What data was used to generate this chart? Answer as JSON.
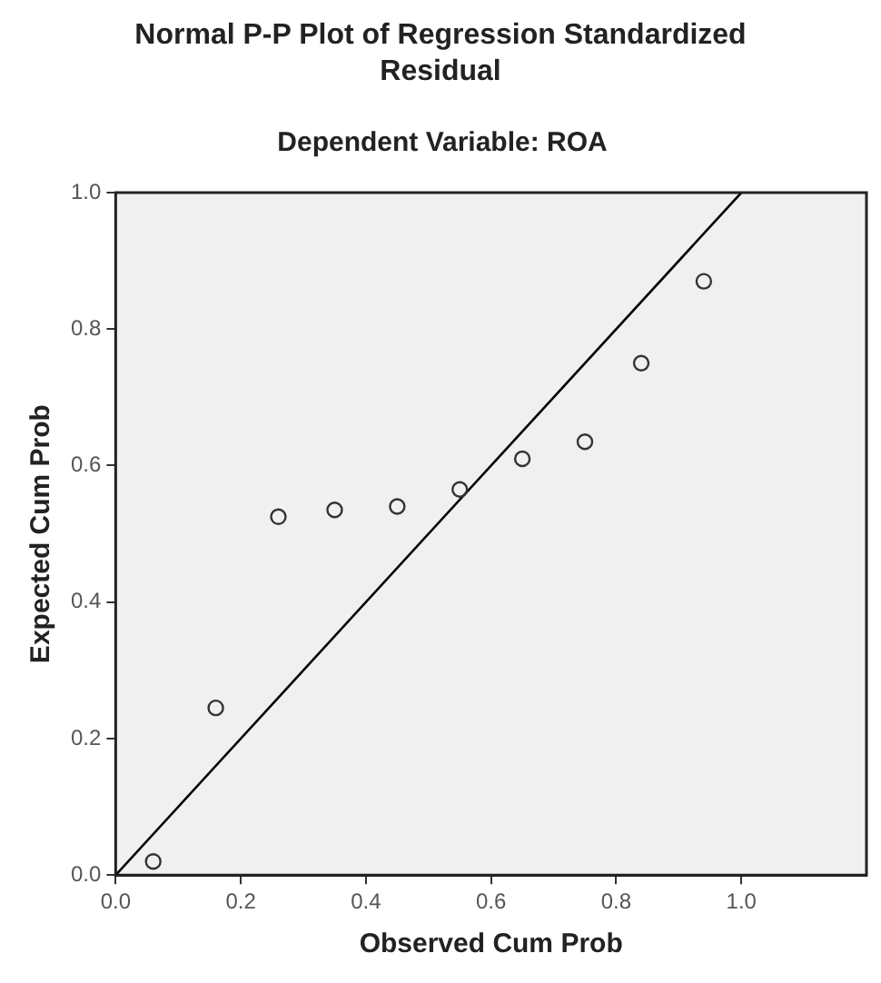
{
  "chart_data": {
    "type": "scatter",
    "title": "Normal P-P Plot of Regression Standardized Residual",
    "subtitle": "Dependent Variable: ROA",
    "xlabel": "Observed Cum Prob",
    "ylabel": "Expected Cum Prob",
    "xlim": [
      0,
      1.2
    ],
    "ylim": [
      0,
      1
    ],
    "xticks": [
      {
        "value": 0,
        "label": "0.0"
      },
      {
        "value": 0.2,
        "label": "0.2"
      },
      {
        "value": 0.4,
        "label": "0.4"
      },
      {
        "value": 0.6,
        "label": "0.6"
      },
      {
        "value": 0.8,
        "label": "0.8"
      },
      {
        "value": 1,
        "label": "1.0"
      }
    ],
    "yticks": [
      {
        "value": 0,
        "label": "0.0"
      },
      {
        "value": 0.2,
        "label": "0.2"
      },
      {
        "value": 0.4,
        "label": "0.4"
      },
      {
        "value": 0.6,
        "label": "0.6"
      },
      {
        "value": 0.8,
        "label": "0.8"
      },
      {
        "value": 1,
        "label": "1.0"
      }
    ],
    "series": [
      {
        "color": "#333333",
        "marker": "circle",
        "x": [
          0.06,
          0.16,
          0.26,
          0.35,
          0.45,
          0.55,
          0.65,
          0.75,
          0.84,
          0.94
        ],
        "values": [
          0.02,
          0.245,
          0.525,
          0.535,
          0.54,
          0.565,
          0.61,
          0.635,
          0.75,
          0.87
        ]
      },
      {
        "type": "line",
        "color": "#000000",
        "marker": "none",
        "x": [
          0,
          1
        ],
        "values": [
          0,
          1
        ]
      }
    ],
    "legend": false
  }
}
